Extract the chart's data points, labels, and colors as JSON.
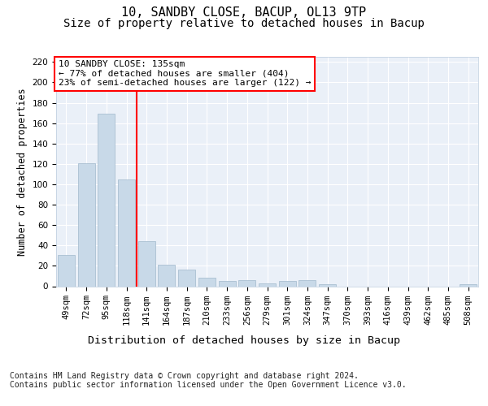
{
  "title1": "10, SANDBY CLOSE, BACUP, OL13 9TP",
  "title2": "Size of property relative to detached houses in Bacup",
  "xlabel": "Distribution of detached houses by size in Bacup",
  "ylabel": "Number of detached properties",
  "categories": [
    "49sqm",
    "72sqm",
    "95sqm",
    "118sqm",
    "141sqm",
    "164sqm",
    "187sqm",
    "210sqm",
    "233sqm",
    "256sqm",
    "279sqm",
    "301sqm",
    "324sqm",
    "347sqm",
    "370sqm",
    "393sqm",
    "416sqm",
    "439sqm",
    "462sqm",
    "485sqm",
    "508sqm"
  ],
  "values": [
    31,
    121,
    169,
    105,
    44,
    21,
    16,
    8,
    5,
    6,
    3,
    5,
    6,
    2,
    0,
    0,
    0,
    0,
    0,
    0,
    2
  ],
  "bar_color": "#c8d9e8",
  "bar_edge_color": "#a0b8cc",
  "vline_color": "red",
  "annotation_text": "10 SANDBY CLOSE: 135sqm\n← 77% of detached houses are smaller (404)\n23% of semi-detached houses are larger (122) →",
  "ylim": [
    0,
    225
  ],
  "yticks": [
    0,
    20,
    40,
    60,
    80,
    100,
    120,
    140,
    160,
    180,
    200,
    220
  ],
  "footer_text": "Contains HM Land Registry data © Crown copyright and database right 2024.\nContains public sector information licensed under the Open Government Licence v3.0.",
  "background_color": "#eaf0f8",
  "grid_color": "#ffffff",
  "title1_fontsize": 11,
  "title2_fontsize": 10,
  "xlabel_fontsize": 9.5,
  "ylabel_fontsize": 8.5,
  "tick_fontsize": 7.5,
  "annotation_fontsize": 8,
  "footer_fontsize": 7
}
